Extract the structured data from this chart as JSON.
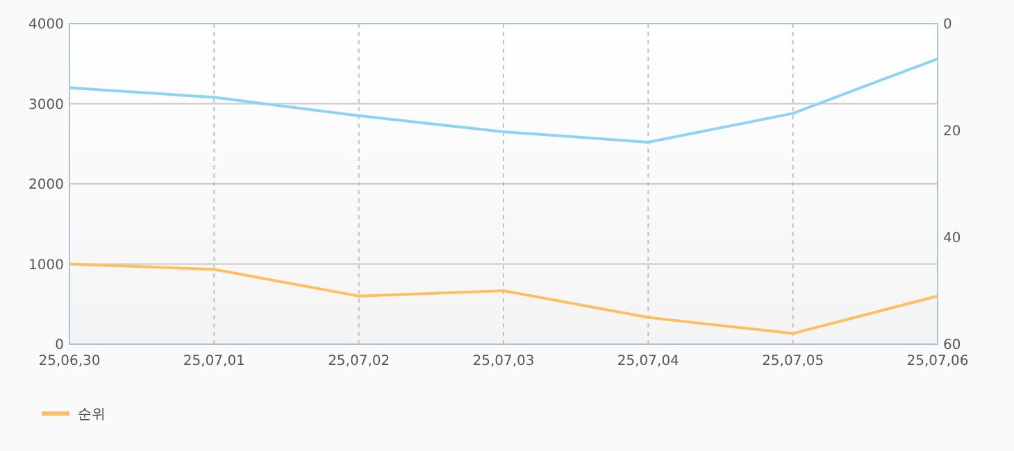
{
  "chart_data": {
    "type": "line",
    "categories": [
      "25,06,30",
      "25,07,01",
      "25,07,02",
      "25,07,03",
      "25,07,04",
      "25,07,05",
      "25,07,06"
    ],
    "series": [
      {
        "color": "#8fd3f2",
        "values": [
          3200,
          3080,
          2850,
          2650,
          2520,
          2880,
          3560
        ]
      },
      {
        "name": "순위",
        "color": "#fcc062",
        "axis": "y2",
        "values": [
          45,
          46,
          51,
          50,
          55,
          58,
          51
        ]
      }
    ],
    "ylim": [
      0,
      4000
    ],
    "yticks": [
      0,
      1000,
      2000,
      3000,
      4000
    ],
    "y2lim": [
      60,
      0
    ],
    "y2ticks": [
      0,
      20,
      40,
      60
    ],
    "grid": true,
    "legend": "bottom",
    "marker": "none",
    "line_style": "solid"
  }
}
